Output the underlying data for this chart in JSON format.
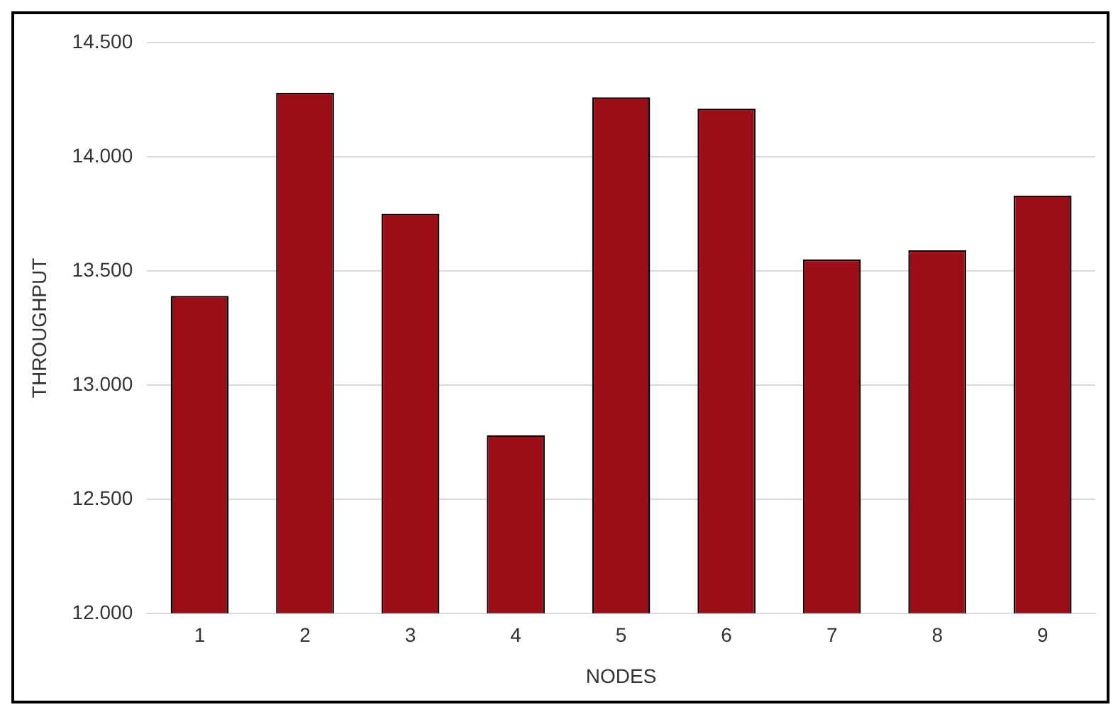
{
  "chart_data": {
    "type": "bar",
    "xlabel": "NODES",
    "ylabel": "THROUGHPUT",
    "categories": [
      "1",
      "2",
      "3",
      "4",
      "5",
      "6",
      "7",
      "8",
      "9"
    ],
    "values": [
      13390,
      14280,
      13750,
      12780,
      14260,
      14210,
      13550,
      13590,
      13830
    ],
    "color": "#9b0e17",
    "ylim": [
      12000,
      14500
    ],
    "yticks": [
      {
        "value": 12000,
        "label": "12.000"
      },
      {
        "value": 12500,
        "label": "12.500"
      },
      {
        "value": 13000,
        "label": "13.000"
      },
      {
        "value": 13500,
        "label": "13.500"
      },
      {
        "value": 14000,
        "label": "14.000"
      },
      {
        "value": 14500,
        "label": "14.500"
      }
    ],
    "grid": "y",
    "legend": false
  }
}
